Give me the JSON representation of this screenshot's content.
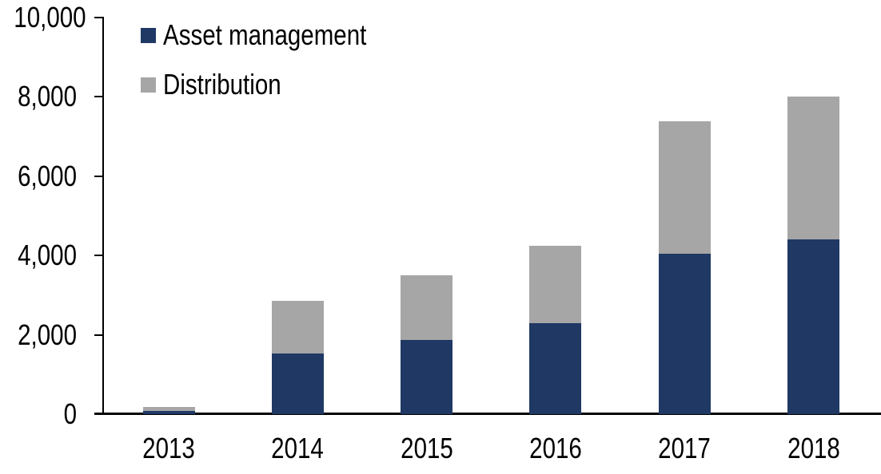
{
  "chart_data": {
    "type": "bar",
    "stacked": true,
    "title": "",
    "xlabel": "",
    "ylabel": "",
    "categories": [
      "2013",
      "2014",
      "2015",
      "2016",
      "2017",
      "2018"
    ],
    "series": [
      {
        "name": "Asset management",
        "color": "#1F3864",
        "values": [
          80,
          1530,
          1880,
          2300,
          4040,
          4410
        ]
      },
      {
        "name": "Distribution",
        "color": "#A6A6A6",
        "values": [
          110,
          1330,
          1620,
          1950,
          3340,
          3590
        ]
      }
    ],
    "totals": [
      190,
      2860,
      3500,
      4250,
      7380,
      8000
    ],
    "ylim": [
      0,
      10000
    ],
    "y_ticks": [
      0,
      2000,
      4000,
      6000,
      8000,
      10000
    ],
    "y_tick_labels": [
      "0",
      "2,000",
      "4,000",
      "6,000",
      "8,000",
      "10,000"
    ],
    "grid": false,
    "legend_position": "top-left",
    "axis_color": "#000000",
    "text_color": "#000000",
    "background_color": "#ffffff"
  },
  "legend": {
    "items": [
      {
        "label": "Asset management",
        "color": "#1F3864"
      },
      {
        "label": "Distribution",
        "color": "#A6A6A6"
      }
    ]
  }
}
